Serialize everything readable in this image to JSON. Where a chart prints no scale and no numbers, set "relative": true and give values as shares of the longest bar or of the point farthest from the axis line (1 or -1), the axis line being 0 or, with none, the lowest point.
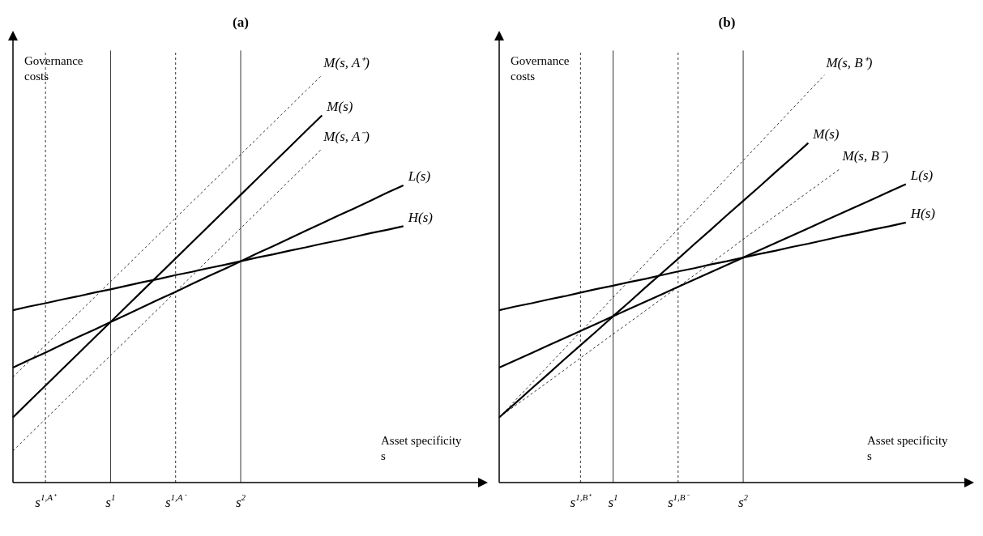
{
  "chart_data": [
    {
      "type": "line",
      "title": "(a)",
      "xlabel": "Asset specificity s",
      "ylabel": "Governance costs",
      "relative": true,
      "categories": [
        null,
        null,
        "s$^{1,A⁺}$",
        null,
        null,
        null,
        "s$^{1}$",
        null,
        null,
        null,
        "s$^{1,A⁻}$",
        null,
        null,
        null,
        "s$^{2}$",
        null,
        null,
        null,
        null,
        null,
        null,
        null,
        null,
        null,
        null,
        null,
        null,
        null,
        null
      ],
      "series": [
        {
          "name": "M(s, A⁺)",
          "color": "#000000",
          "line_style": "dashed",
          "values": [
            0.259,
            0.298,
            0.337,
            0.376,
            0.415,
            0.454,
            0.493,
            0.532,
            0.571,
            0.61,
            0.649,
            0.688,
            0.727,
            0.766,
            0.805,
            0.844,
            0.883,
            0.922,
            0.961,
            1.0,
            null,
            null,
            null,
            null,
            null,
            null,
            null,
            null,
            null
          ]
        },
        {
          "name": "M(s)",
          "color": "#000000",
          "values": [
            0.16,
            0.199,
            0.238,
            0.277,
            0.316,
            0.355,
            0.394,
            0.433,
            0.472,
            0.511,
            0.55,
            0.589,
            0.628,
            0.667,
            0.706,
            0.745,
            0.784,
            0.823,
            0.862,
            0.901,
            null,
            null,
            null,
            null,
            null,
            null,
            null,
            null,
            null
          ]
        },
        {
          "name": "M(s, A⁻)",
          "color": "#000000",
          "line_style": "dashed",
          "values": [
            0.078,
            0.117,
            0.156,
            0.195,
            0.234,
            0.273,
            0.312,
            0.351,
            0.39,
            0.429,
            0.468,
            0.507,
            0.546,
            0.585,
            0.624,
            0.663,
            0.702,
            0.741,
            0.78,
            0.819,
            null,
            null,
            null,
            null,
            null,
            null,
            null,
            null,
            null
          ]
        },
        {
          "name": "L(s)",
          "color": "#000000",
          "values": [
            0.282,
            0.301,
            0.319,
            0.338,
            0.357,
            0.375,
            0.394,
            0.412,
            0.431,
            0.45,
            0.468,
            0.487,
            0.506,
            0.524,
            0.543,
            0.562,
            0.58,
            0.599,
            0.618,
            0.636,
            0.655,
            0.673,
            0.692,
            0.711,
            0.729,
            null,
            null,
            null,
            null
          ]
        },
        {
          "name": "H(s)",
          "color": "#000000",
          "values": [
            0.423,
            0.432,
            0.44,
            0.449,
            0.457,
            0.466,
            0.474,
            0.483,
            0.492,
            0.5,
            0.509,
            0.517,
            0.526,
            0.534,
            0.543,
            0.552,
            0.56,
            0.569,
            0.577,
            0.586,
            0.594,
            0.603,
            0.612,
            0.62,
            0.629,
            null,
            null,
            null,
            null
          ]
        }
      ],
      "ref_lines": [
        {
          "axis": "x",
          "value": "s$^{1,A⁺}$",
          "line_style": "dashed"
        },
        {
          "axis": "x",
          "value": "s$^{1}$",
          "line_style": "solid"
        },
        {
          "axis": "x",
          "value": "s$^{1,A⁻}$",
          "line_style": "dashed"
        },
        {
          "axis": "x",
          "value": "s$^{2}$",
          "line_style": "solid"
        }
      ]
    },
    {
      "type": "line",
      "title": "(b)",
      "xlabel": "Asset specificity s",
      "ylabel": "Governance costs",
      "relative": true,
      "categories": [
        null,
        null,
        null,
        null,
        null,
        "s$^{1,B⁺}$",
        null,
        "s$^{1}$",
        null,
        null,
        null,
        "s$^{1,B⁻}$",
        null,
        null,
        null,
        "s$^{2}$",
        null,
        null,
        null,
        null,
        null,
        null,
        null,
        null,
        null,
        null,
        null,
        null,
        null
      ],
      "series": [
        {
          "name": "M(s, B⁺)",
          "color": "#000000",
          "line_style": "dashed",
          "values": [
            0.16,
            0.202,
            0.244,
            0.286,
            0.328,
            0.37,
            0.412,
            0.454,
            0.496,
            0.538,
            0.58,
            0.622,
            0.664,
            0.706,
            0.748,
            0.79,
            0.832,
            0.874,
            0.916,
            0.958,
            1.0,
            null,
            null,
            null,
            null,
            null,
            null,
            null,
            null
          ]
        },
        {
          "name": "M(s)",
          "color": "#000000",
          "values": [
            0.16,
            0.195,
            0.231,
            0.266,
            0.302,
            0.337,
            0.372,
            0.408,
            0.443,
            0.479,
            0.514,
            0.549,
            0.585,
            0.62,
            0.656,
            0.691,
            0.726,
            0.762,
            0.797,
            0.833,
            null,
            null,
            null,
            null,
            null,
            null,
            null,
            null,
            null
          ]
        },
        {
          "name": "M(s, B⁻)",
          "color": "#000000",
          "line_style": "dashed",
          "values": [
            0.16,
            0.189,
            0.218,
            0.247,
            0.276,
            0.306,
            0.335,
            0.364,
            0.393,
            0.422,
            0.451,
            0.48,
            0.509,
            0.538,
            0.567,
            0.597,
            0.626,
            0.655,
            0.684,
            0.713,
            0.742,
            0.771,
            null,
            null,
            null,
            null,
            null,
            null,
            null
          ]
        },
        {
          "name": "L(s)",
          "color": "#000000",
          "values": [
            0.282,
            0.3,
            0.318,
            0.336,
            0.354,
            0.372,
            0.39,
            0.408,
            0.426,
            0.444,
            0.462,
            0.48,
            0.498,
            0.516,
            0.534,
            0.552,
            0.57,
            0.588,
            0.606,
            0.624,
            0.642,
            0.66,
            0.678,
            0.696,
            0.714,
            0.732,
            null,
            null,
            null
          ]
        },
        {
          "name": "H(s)",
          "color": "#000000",
          "values": [
            0.423,
            0.432,
            0.44,
            0.449,
            0.457,
            0.466,
            0.475,
            0.483,
            0.492,
            0.5,
            0.509,
            0.518,
            0.526,
            0.535,
            0.543,
            0.552,
            0.561,
            0.569,
            0.578,
            0.586,
            0.595,
            0.604,
            0.612,
            0.621,
            0.629,
            0.638,
            null,
            null,
            null
          ]
        }
      ],
      "ref_lines": [
        {
          "axis": "x",
          "value": "s$^{1,B⁺}$",
          "line_style": "dashed"
        },
        {
          "axis": "x",
          "value": "s$^{1}$",
          "line_style": "solid"
        },
        {
          "axis": "x",
          "value": "s$^{1,B⁻}$",
          "line_style": "dashed"
        },
        {
          "axis": "x",
          "value": "s$^{2}$",
          "line_style": "solid"
        }
      ]
    }
  ]
}
